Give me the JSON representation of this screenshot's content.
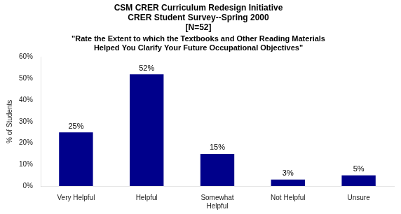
{
  "chart_data": {
    "type": "bar",
    "title": "CSM CRER Curriculum Redesign Initiative\nCRER Student Survey--Spring 2000\n[N=52]",
    "subtitle": "\"Rate the Extent to which the Textbooks and Other Reading Materials\nHelped You Clarify Your Future Occupational Objectives\"",
    "categories": [
      "Very Helpful",
      "Helpful",
      "Somewhat\nHelpful",
      "Not Helpful",
      "Unsure"
    ],
    "values": [
      25,
      52,
      15,
      3,
      5
    ],
    "value_labels": [
      "25%",
      "52%",
      "15%",
      "3%",
      "5%"
    ],
    "data_labels": true,
    "color": "#00008B",
    "ylabel": "% of Students",
    "ylim": [
      0,
      60
    ],
    "yticks": [
      {
        "value": 0,
        "label": "0%"
      },
      {
        "value": 10,
        "label": "10%"
      },
      {
        "value": 20,
        "label": "20%"
      },
      {
        "value": 30,
        "label": "30%"
      },
      {
        "value": 40,
        "label": "40%"
      },
      {
        "value": 50,
        "label": "50%"
      },
      {
        "value": 60,
        "label": "60%"
      }
    ],
    "grid": false
  }
}
